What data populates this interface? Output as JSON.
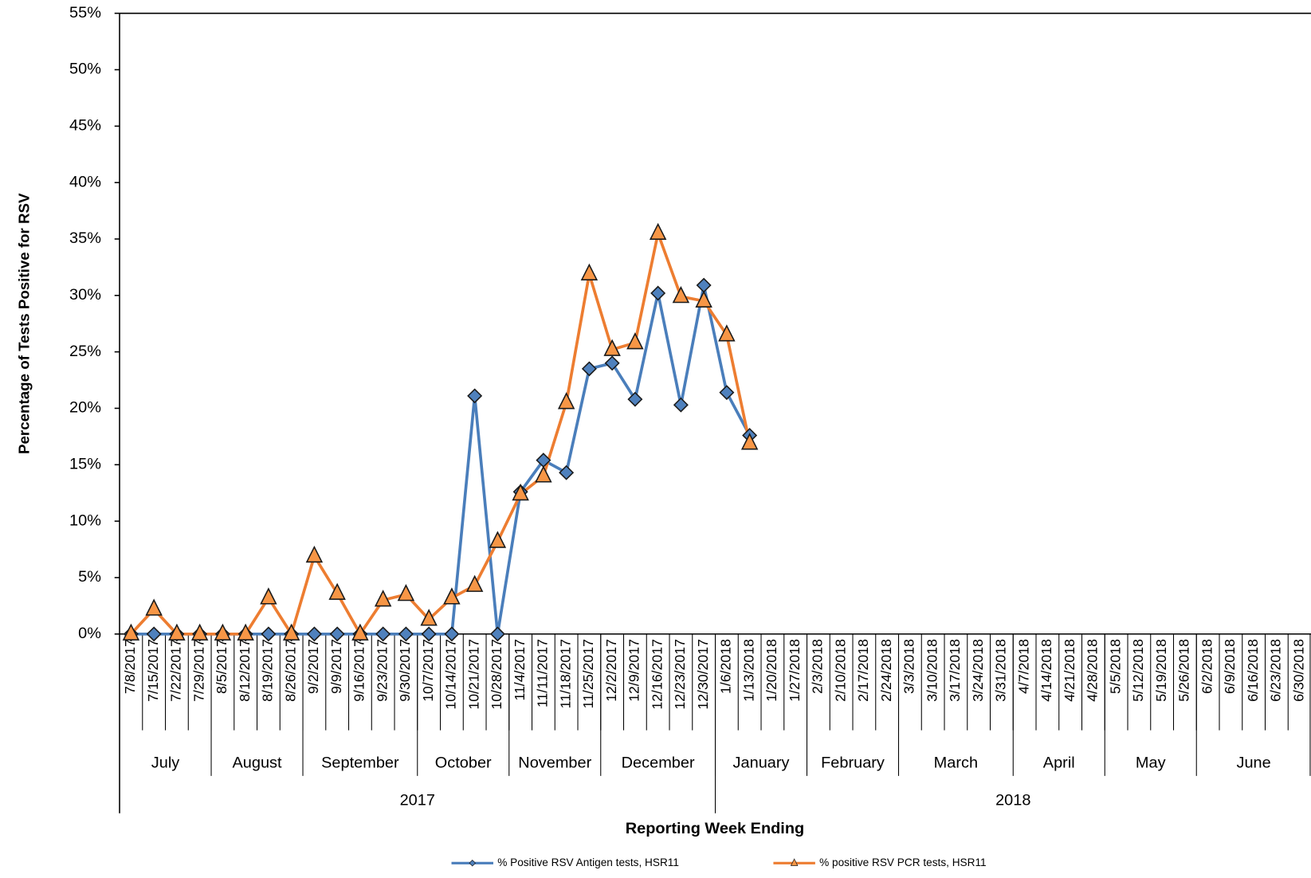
{
  "chart_data": {
    "type": "line",
    "y_label": "Percentage of Tests Positive for RSV",
    "x_label": "Reporting Week Ending",
    "categories": [
      "7/8/2017",
      "7/15/2017",
      "7/22/2017",
      "7/29/2017",
      "8/5/2017",
      "8/12/2017",
      "8/19/2017",
      "8/26/2017",
      "9/2/2017",
      "9/9/2017",
      "9/16/2017",
      "9/23/2017",
      "9/30/2017",
      "10/7/2017",
      "10/14/2017",
      "10/21/2017",
      "10/28/2017",
      "11/4/2017",
      "11/11/2017",
      "11/18/2017",
      "11/25/2017",
      "12/2/2017",
      "12/9/2017",
      "12/16/2017",
      "12/23/2017",
      "12/30/2017",
      "1/6/2018",
      "1/13/2018",
      "1/20/2018",
      "1/27/2018",
      "2/3/2018",
      "2/10/2018",
      "2/17/2018",
      "2/24/2018",
      "3/3/2018",
      "3/10/2018",
      "3/17/2018",
      "3/24/2018",
      "3/31/2018",
      "4/7/2018",
      "4/14/2018",
      "4/21/2018",
      "4/28/2018",
      "5/5/2018",
      "5/12/2018",
      "5/19/2018",
      "5/26/2018",
      "6/2/2018",
      "6/9/2018",
      "6/16/2018",
      "6/23/2018",
      "6/30/2018"
    ],
    "month_labels": [
      "July",
      "August",
      "September",
      "October",
      "November",
      "December",
      "January",
      "February",
      "March",
      "April",
      "May",
      "June"
    ],
    "year_labels": [
      "2017",
      "2018"
    ],
    "series": [
      {
        "name": "% Positive RSV Antigen tests, HSR11",
        "color": "#4a7ebb",
        "marker": "diamond",
        "marker_color": "#4f81bd",
        "values": [
          0,
          0,
          0,
          0,
          0,
          0,
          0,
          0,
          0,
          0,
          0,
          0,
          0,
          0,
          0,
          21.1,
          0,
          12.6,
          15.4,
          14.3,
          23.5,
          24.0,
          20.8,
          30.2,
          20.3,
          30.9,
          21.4,
          17.6,
          null,
          null,
          null,
          null,
          null,
          null,
          null,
          null,
          null,
          null,
          null,
          null,
          null,
          null,
          null,
          null,
          null,
          null,
          null,
          null,
          null,
          null,
          null,
          null
        ]
      },
      {
        "name": "% positive RSV PCR tests, HSR11",
        "color": "#ed7d31",
        "marker": "triangle",
        "marker_color": "#f79646",
        "values": [
          0,
          2.2,
          0,
          0,
          0,
          0,
          3.2,
          0,
          6.9,
          3.6,
          0,
          3.0,
          3.5,
          1.3,
          3.2,
          4.3,
          8.2,
          12.4,
          14.0,
          20.5,
          31.9,
          25.2,
          25.8,
          35.5,
          29.9,
          29.5,
          26.5,
          16.9,
          null,
          null,
          null,
          null,
          null,
          null,
          null,
          null,
          null,
          null,
          null,
          null,
          null,
          null,
          null,
          null,
          null,
          null,
          null,
          null,
          null,
          null,
          null,
          null
        ]
      }
    ],
    "ylim": [
      0,
      55
    ],
    "yticks": [
      {
        "value": 0,
        "label": "0%"
      },
      {
        "value": 5,
        "label": "5%"
      },
      {
        "value": 10,
        "label": "10%"
      },
      {
        "value": 15,
        "label": "15%"
      },
      {
        "value": 20,
        "label": "20%"
      },
      {
        "value": 25,
        "label": "25%"
      },
      {
        "value": 30,
        "label": "30%"
      },
      {
        "value": 35,
        "label": "35%"
      },
      {
        "value": 40,
        "label": "40%"
      },
      {
        "value": 45,
        "label": "45%"
      },
      {
        "value": 50,
        "label": "50%"
      },
      {
        "value": 55,
        "label": "55%"
      }
    ],
    "grid": false
  }
}
